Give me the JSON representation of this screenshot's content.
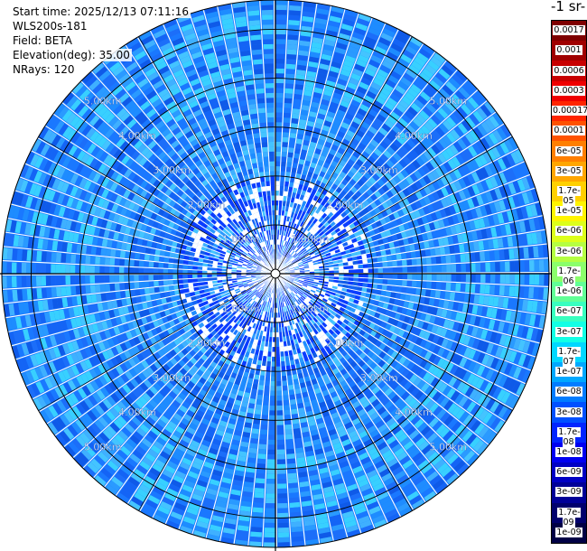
{
  "info": {
    "start_time": "Start time: 2025/12/13 07:11:16",
    "device": "WLS200s-181",
    "field": "Field: BETA",
    "elevation": "Elevation(deg): 35.00",
    "nrays": "NRays: 120"
  },
  "colorbar": {
    "units_label": "-1 sr-",
    "ticks": [
      "0.0017",
      "0.001",
      "0.0006",
      "0.0003",
      "0.00017",
      "0.0001",
      "6e-05",
      "3e-05",
      "1.7e-05",
      "1e-05",
      "6e-06",
      "3e-06",
      "1.7e-06",
      "1e-06",
      "6e-07",
      "3e-07",
      "1.7e-07",
      "1e-07",
      "6e-08",
      "3e-08",
      "1.7e-08",
      "1e-08",
      "6e-09",
      "3e-09",
      "1.7e-09",
      "1e-09"
    ],
    "colors": [
      "#7f0000",
      "#a00000",
      "#c80000",
      "#ef0000",
      "#ff2500",
      "#ff5200",
      "#ff7f00",
      "#ffa600",
      "#ffd000",
      "#fff500",
      "#ddff1a",
      "#b5ff42",
      "#8bff6b",
      "#61ff96",
      "#38ffbf",
      "#12ffe5",
      "#00d8ff",
      "#00a8ff",
      "#007cff",
      "#0050ff",
      "#0024ff",
      "#0000f1",
      "#0000c4",
      "#000098",
      "#00006d",
      "#000045"
    ]
  },
  "chart_data": {
    "type": "heatmap",
    "projection": "polar-ppi",
    "field": "BETA",
    "elevation_deg": 35.0,
    "n_rays": 120,
    "max_range_km": 5.6,
    "range_rings_km": [
      1.0,
      2.0,
      3.0,
      4.0,
      5.0
    ],
    "range_labels": [
      "1.00km",
      "2.00km",
      "3.00km",
      "4.00km",
      "5.00km"
    ],
    "color_scale": "log",
    "value_range": [
      1e-09,
      0.0017
    ],
    "typical_values": {
      "near_0_to_2km": "3e-08 to 1e-08",
      "far_3_to_5km": "6e-08 to 1.7e-08",
      "bands_near_4_5km": "1e-07 to 6e-08"
    }
  }
}
